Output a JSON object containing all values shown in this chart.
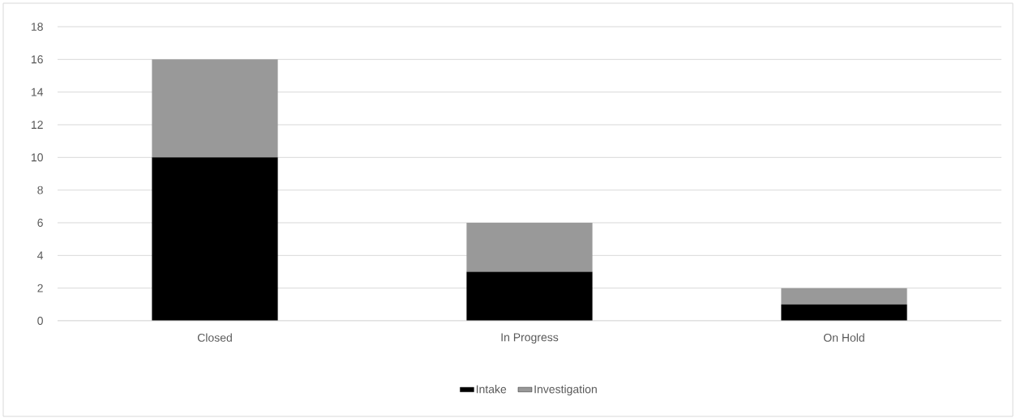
{
  "chart_data": {
    "type": "bar",
    "stacked": true,
    "categories": [
      "Closed",
      "In Progress",
      "On Hold"
    ],
    "series": [
      {
        "name": "Intake",
        "color": "#000000",
        "values": [
          10,
          3,
          1
        ]
      },
      {
        "name": "Investigation",
        "color": "#999999",
        "values": [
          6,
          3,
          1
        ]
      }
    ],
    "ylim": [
      0,
      18
    ],
    "yticks": [
      0,
      2,
      4,
      6,
      8,
      10,
      12,
      14,
      16,
      18
    ],
    "grid": "y",
    "legend": "bottom"
  }
}
